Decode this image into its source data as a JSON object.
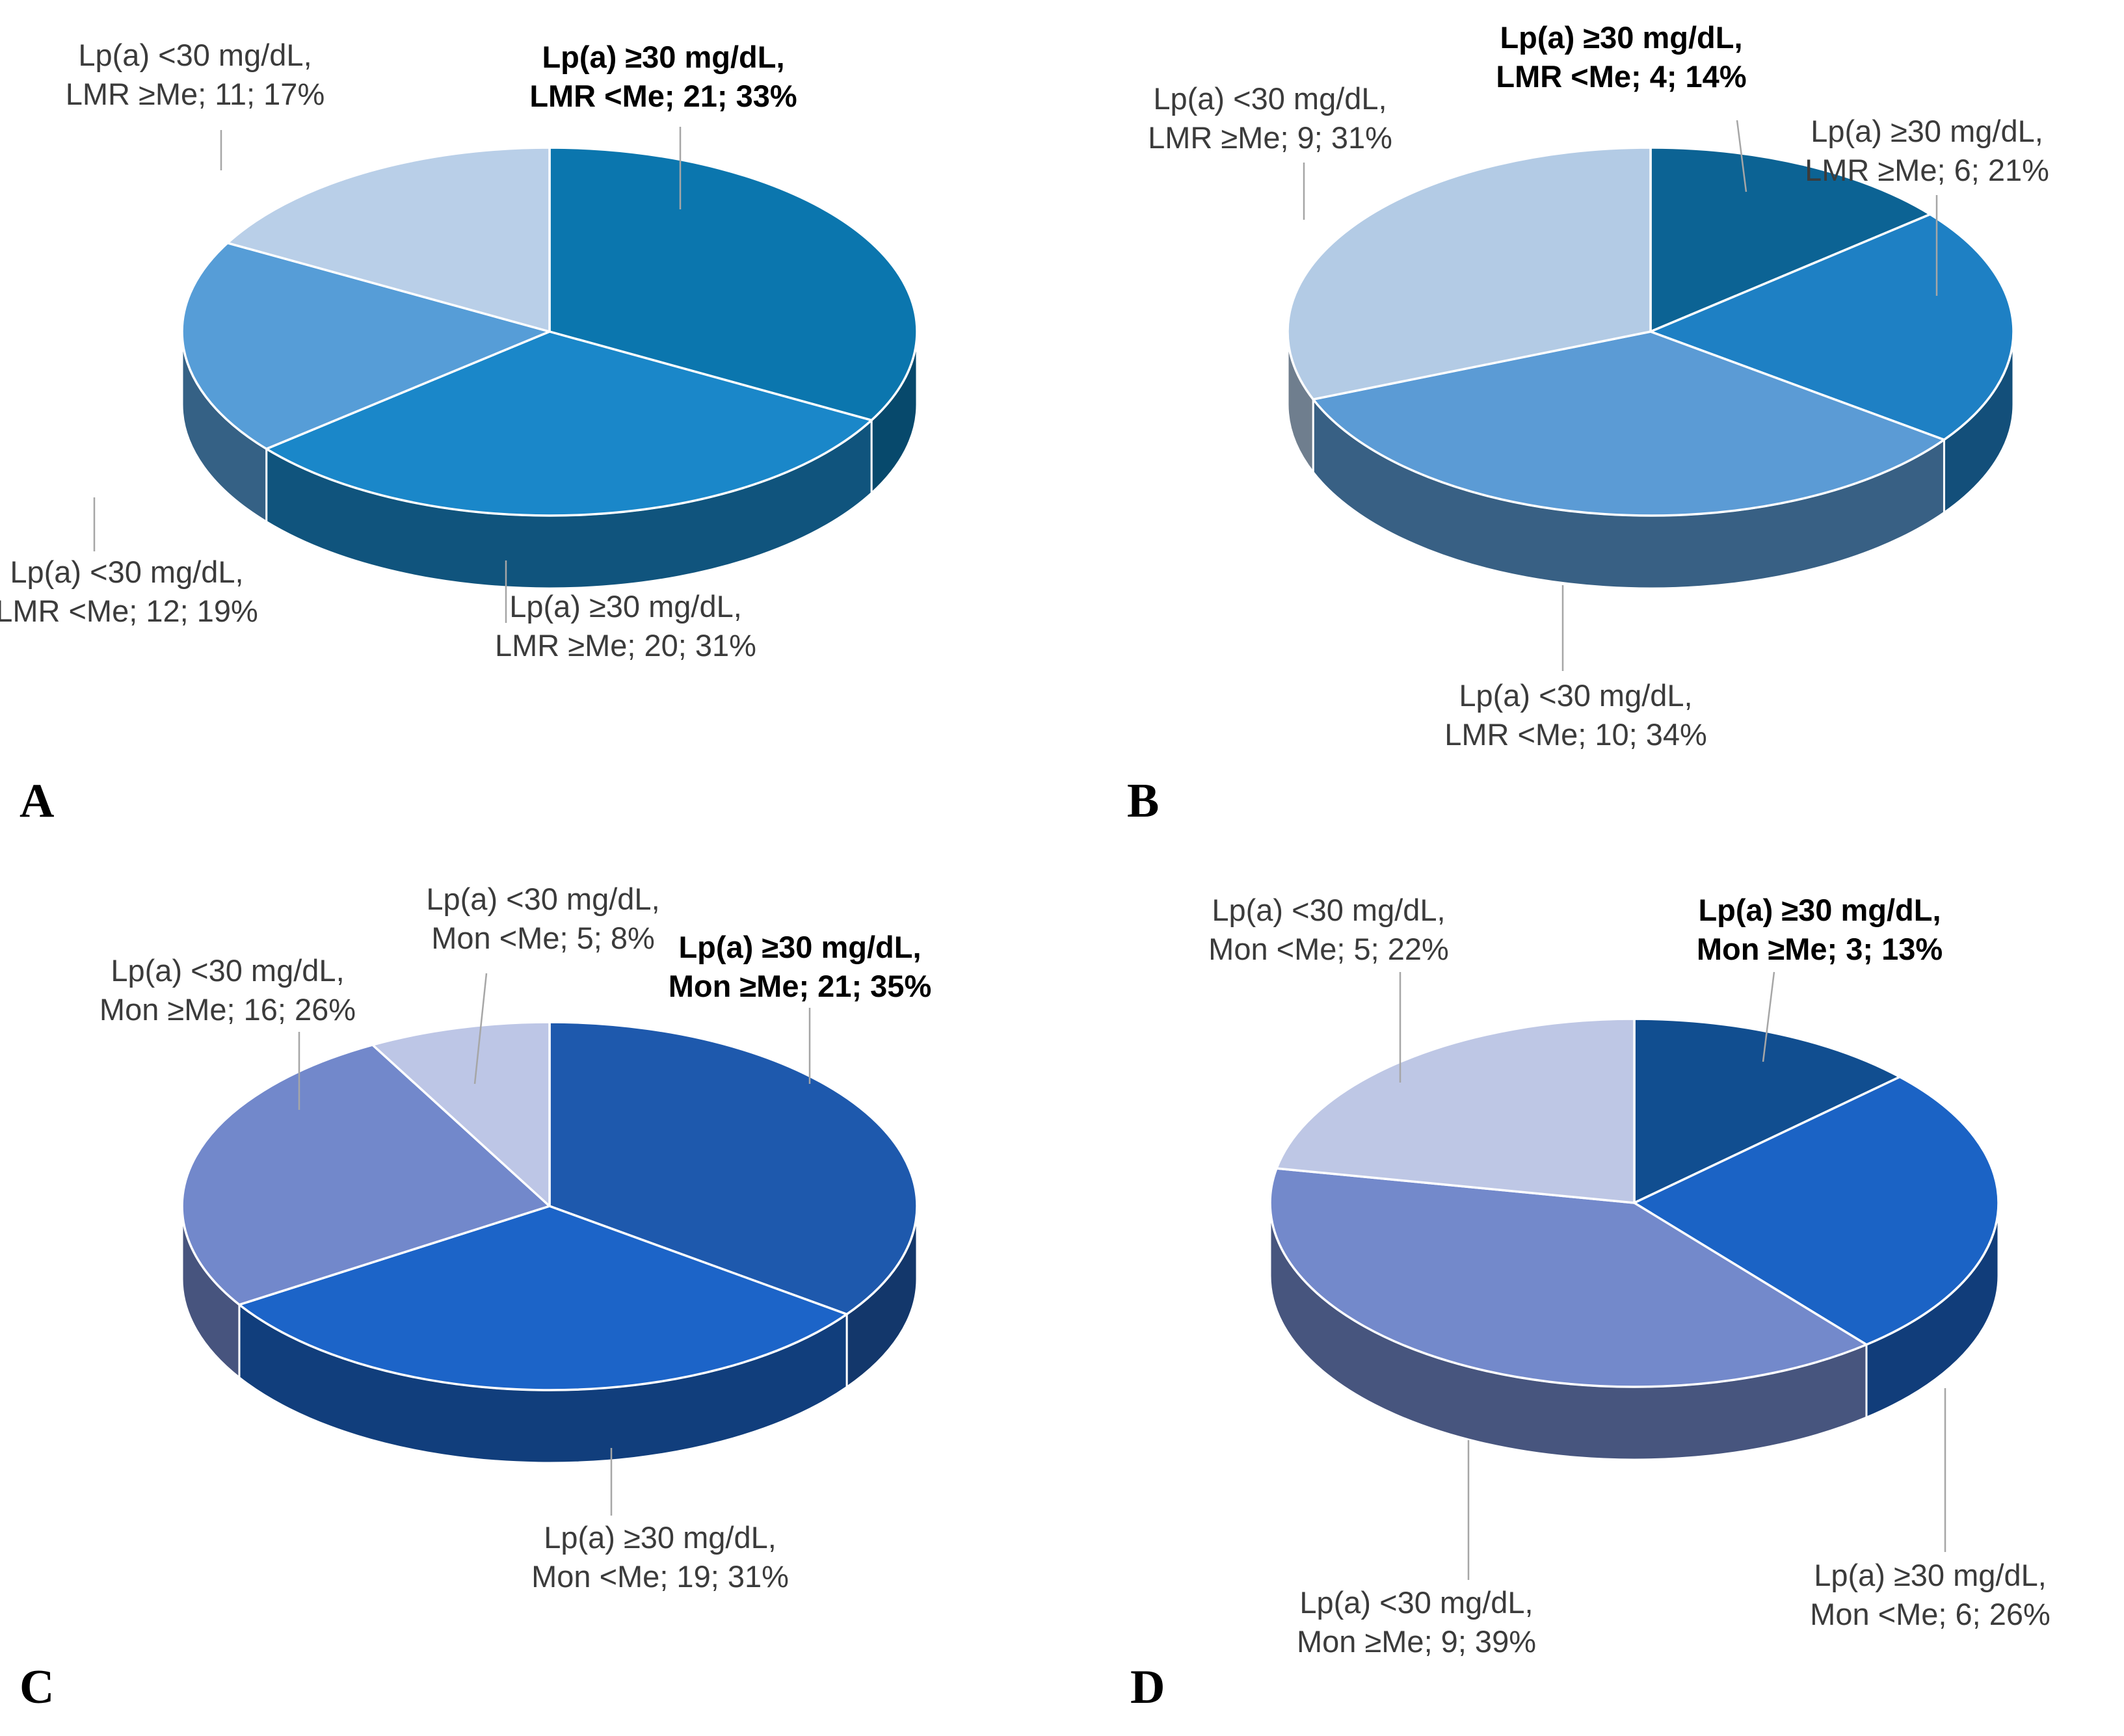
{
  "figure": {
    "description": "Four 3D pie charts of Lp(a) level combined with LMR or Mon median groups",
    "label_text_color": "#3b3b3b",
    "bold_label_color": "#000000",
    "leader_line_color": "#a6a6a6",
    "slice_outline_color": "#ffffff"
  },
  "chart_data": [
    {
      "type": "pie",
      "panel_label": "A",
      "legend_position": "callout-labels",
      "slices": [
        {
          "label": "Lp(a) ≥30 mg/dL, LMR <Me",
          "line1": "Lp(a) ≥30 mg/dL,",
          "line2": "LMR <Me; 21; 33%",
          "count": 21,
          "pct": 33,
          "color": "#0b76ae",
          "bold": true
        },
        {
          "label": "Lp(a) ≥30 mg/dL, LMR ≥Me",
          "line1": "Lp(a) ≥30 mg/dL,",
          "line2": "LMR ≥Me; 20; 31%",
          "count": 20,
          "pct": 31,
          "color": "#1a87c9",
          "bold": false
        },
        {
          "label": "Lp(a) <30 mg/dL, LMR <Me",
          "line1": "Lp(a) <30 mg/dL,",
          "line2": "LMR <Me; 12; 19%",
          "count": 12,
          "pct": 19,
          "color": "#569dd7",
          "bold": false
        },
        {
          "label": "Lp(a) <30 mg/dL, LMR ≥Me",
          "line1": "Lp(a) <30 mg/dL,",
          "line2": "LMR ≥Me; 11; 17%",
          "count": 11,
          "pct": 17,
          "color": "#b9cfe8",
          "bold": false
        }
      ]
    },
    {
      "type": "pie",
      "panel_label": "B",
      "legend_position": "callout-labels",
      "slices": [
        {
          "label": "Lp(a) ≥30 mg/dL, LMR <Me",
          "line1": "Lp(a) ≥30 mg/dL,",
          "line2": "LMR <Me; 4; 14%",
          "count": 4,
          "pct": 14,
          "color": "#0c6394",
          "bold": true
        },
        {
          "label": "Lp(a) ≥30 mg/dL, LMR ≥Me",
          "line1": "Lp(a) ≥30 mg/dL,",
          "line2": "LMR ≥Me; 6; 21%",
          "count": 6,
          "pct": 21,
          "color": "#1e80c4",
          "bold": false
        },
        {
          "label": "Lp(a) <30 mg/dL, LMR <Me",
          "line1": "Lp(a) <30 mg/dL,",
          "line2": "LMR <Me; 10; 34%",
          "count": 10,
          "pct": 34,
          "color": "#5b9bd5",
          "bold": false
        },
        {
          "label": "Lp(a) <30 mg/dL, LMR ≥Me",
          "line1": "Lp(a) <30 mg/dL,",
          "line2": "LMR ≥Me; 9; 31%",
          "count": 9,
          "pct": 31,
          "color": "#b3cbe5",
          "bold": false
        }
      ]
    },
    {
      "type": "pie",
      "panel_label": "C",
      "legend_position": "callout-labels",
      "slices": [
        {
          "label": "Lp(a) ≥30 mg/dL, Mon ≥Me",
          "line1": "Lp(a) ≥30 mg/dL,",
          "line2": "Mon ≥Me; 21; 35%",
          "count": 21,
          "pct": 35,
          "color": "#1e59ad",
          "bold": true
        },
        {
          "label": "Lp(a) ≥30 mg/dL, Mon <Me",
          "line1": "Lp(a) ≥30 mg/dL,",
          "line2": "Mon <Me; 19; 31%",
          "count": 19,
          "pct": 31,
          "color": "#1c64c8",
          "bold": false
        },
        {
          "label": "Lp(a) <30 mg/dL, Mon ≥Me",
          "line1": "Lp(a) <30 mg/dL,",
          "line2": "Mon ≥Me; 16; 26%",
          "count": 16,
          "pct": 26,
          "color": "#7288cb",
          "bold": false
        },
        {
          "label": "Lp(a) <30 mg/dL, Mon <Me",
          "line1": "Lp(a) <30 mg/dL,",
          "line2": "Mon <Me; 5; 8%",
          "count": 5,
          "pct": 8,
          "color": "#bdc6e6",
          "bold": false
        }
      ]
    },
    {
      "type": "pie",
      "panel_label": "D",
      "legend_position": "callout-labels",
      "slices": [
        {
          "label": "Lp(a) ≥30 mg/dL, Mon ≥Me",
          "line1": "Lp(a) ≥30 mg/dL,",
          "line2": "Mon ≥Me; 3; 13%",
          "count": 3,
          "pct": 13,
          "color": "#114e90",
          "bold": true
        },
        {
          "label": "Lp(a) ≥30 mg/dL, Mon <Me",
          "line1": "Lp(a) ≥30 mg/dL,",
          "line2": "Mon <Me; 6; 26%",
          "count": 6,
          "pct": 26,
          "color": "#1b63c5",
          "bold": false
        },
        {
          "label": "Lp(a) <30 mg/dL, Mon ≥Me",
          "line1": "Lp(a) <30 mg/dL,",
          "line2": "Mon ≥Me; 9; 39%",
          "count": 9,
          "pct": 39,
          "color": "#7389cb",
          "bold": false
        },
        {
          "label": "Lp(a) <30 mg/dL, Mon <Me",
          "line1": "Lp(a) <30 mg/dL,",
          "line2": "Mon <Me; 5; 22%",
          "count": 5,
          "pct": 22,
          "color": "#bec7e5",
          "bold": false
        }
      ]
    }
  ]
}
